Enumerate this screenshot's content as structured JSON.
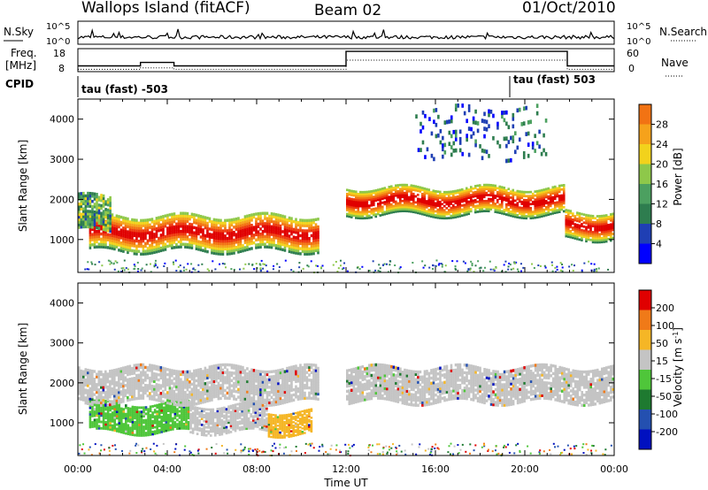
{
  "header": {
    "title": "Wallops Island (fitACF)",
    "beam": "Beam 02",
    "date": "01/Oct/2010"
  },
  "noise_panel": {
    "left_label": "N.Sky",
    "right_label": "N.Search",
    "left_ticks": [
      "10^5",
      "10^0"
    ],
    "right_ticks": [
      "10^5",
      "10^0"
    ]
  },
  "freq_panel": {
    "left_label_1": "Freq.",
    "left_label_2": "[MHz]",
    "right_label": "Nave",
    "left_ticks": [
      "18",
      "8"
    ],
    "right_ticks": [
      "60",
      "0"
    ]
  },
  "cpid": {
    "label": "CPID",
    "segments": [
      {
        "start_hour": 0,
        "text": "tau (fast) -503"
      },
      {
        "start_hour": 19.3,
        "text": "tau (fast) 503"
      }
    ]
  },
  "xaxis": {
    "label": "Time UT",
    "ticks": [
      "00:00",
      "04:00",
      "08:00",
      "12:00",
      "16:00",
      "20:00",
      "00:00"
    ]
  },
  "colors": {
    "power": [
      "#0000ff",
      "#1f3fb4",
      "#2e7d4f",
      "#4ca060",
      "#8ec84a",
      "#f2d21c",
      "#f6a21b",
      "#f27313",
      "#ee3a10",
      "#e00000"
    ],
    "velocity": [
      "#e00000",
      "#f07a18",
      "#f5b626",
      "#c4c4c4",
      "#4fc63a",
      "#1e7a30",
      "#2450b0",
      "#0010c0"
    ]
  },
  "chart_data": [
    {
      "type": "line",
      "title": "",
      "x": [
        0,
        2,
        4,
        6,
        8,
        10,
        12,
        14,
        16,
        18,
        20,
        22,
        24
      ],
      "series": [
        {
          "values": [
            1,
            1,
            1,
            1,
            1,
            1,
            1,
            1,
            1,
            1,
            1,
            1,
            1
          ]
        },
        {
          "values": [
            1,
            1,
            1,
            1,
            1,
            1,
            1,
            1,
            1,
            1,
            1,
            1,
            1
          ]
        }
      ],
      "xlabel": "",
      "ylabel": "N.Sky",
      "ylim": [
        1,
        100000
      ]
    },
    {
      "type": "line",
      "title": "",
      "series": [
        {
          "x": [
            0,
            2.8,
            2.8,
            4.3,
            4.3,
            12,
            12,
            21.9,
            21.9,
            24
          ],
          "values": [
            10.5,
            10.5,
            12,
            12,
            10.5,
            10.5,
            16.8,
            16.8,
            10.5,
            10.5
          ]
        },
        {
          "x": [
            0,
            2.8,
            2.8,
            4.3,
            4.3,
            12,
            12,
            21.9,
            21.9,
            24
          ],
          "values": [
            6,
            6,
            10,
            10,
            6,
            6,
            30,
            30,
            6,
            6
          ]
        }
      ],
      "xlabel": "",
      "ylabel": "Freq. [MHz]",
      "ylim": [
        8,
        18
      ],
      "y2lim": [
        0,
        60
      ]
    },
    {
      "type": "heatmap",
      "title": "",
      "xlabel": "Time UT",
      "ylabel": "Slant Range [km]",
      "xlim": [
        0,
        24
      ],
      "ylim": [
        180,
        4500
      ],
      "yticks": [
        1000,
        2000,
        3000,
        4000
      ],
      "colorbar": {
        "label": "Power [dB]",
        "ticks": [
          4,
          8,
          12,
          16,
          20,
          24,
          28
        ],
        "range": [
          0,
          32
        ]
      },
      "bands": [
        {
          "t0": 0.5,
          "t1": 10.8,
          "r_lo": 700,
          "r_hi": 1600,
          "level": "high"
        },
        {
          "t0": 0,
          "t1": 1.5,
          "r_lo": 1200,
          "r_hi": 2100,
          "level": "mid"
        },
        {
          "t0": 12.0,
          "t1": 21.8,
          "r_lo": 1600,
          "r_hi": 2300,
          "level": "high"
        },
        {
          "t0": 21.8,
          "t1": 24,
          "r_lo": 1000,
          "r_hi": 1700,
          "level": "high"
        },
        {
          "t0": 15.0,
          "t1": 21.0,
          "r_lo": 3000,
          "r_hi": 4300,
          "level": "scatter"
        }
      ]
    },
    {
      "type": "heatmap",
      "title": "",
      "xlabel": "Time UT",
      "ylabel": "Slant Range [km]",
      "xlim": [
        0,
        24
      ],
      "ylim": [
        180,
        4500
      ],
      "yticks": [
        1000,
        2000,
        3000,
        4000
      ],
      "colorbar": {
        "label": "Velocity [m s^-1]",
        "ticks": [
          200,
          100,
          50,
          15,
          -15,
          -50,
          -100,
          -200
        ]
      },
      "bands": [
        {
          "t0": 0.5,
          "t1": 5.0,
          "r_lo": 750,
          "r_hi": 1500,
          "level": "green"
        },
        {
          "t0": 5.0,
          "t1": 8.5,
          "r_lo": 750,
          "r_hi": 1450,
          "level": "grey"
        },
        {
          "t0": 8.5,
          "t1": 10.5,
          "r_lo": 700,
          "r_hi": 1300,
          "level": "orange"
        },
        {
          "t0": 0,
          "t1": 10.8,
          "r_lo": 1500,
          "r_hi": 2400,
          "level": "grey"
        },
        {
          "t0": 12.0,
          "t1": 24,
          "r_lo": 1500,
          "r_hi": 2400,
          "level": "grey"
        }
      ]
    }
  ]
}
